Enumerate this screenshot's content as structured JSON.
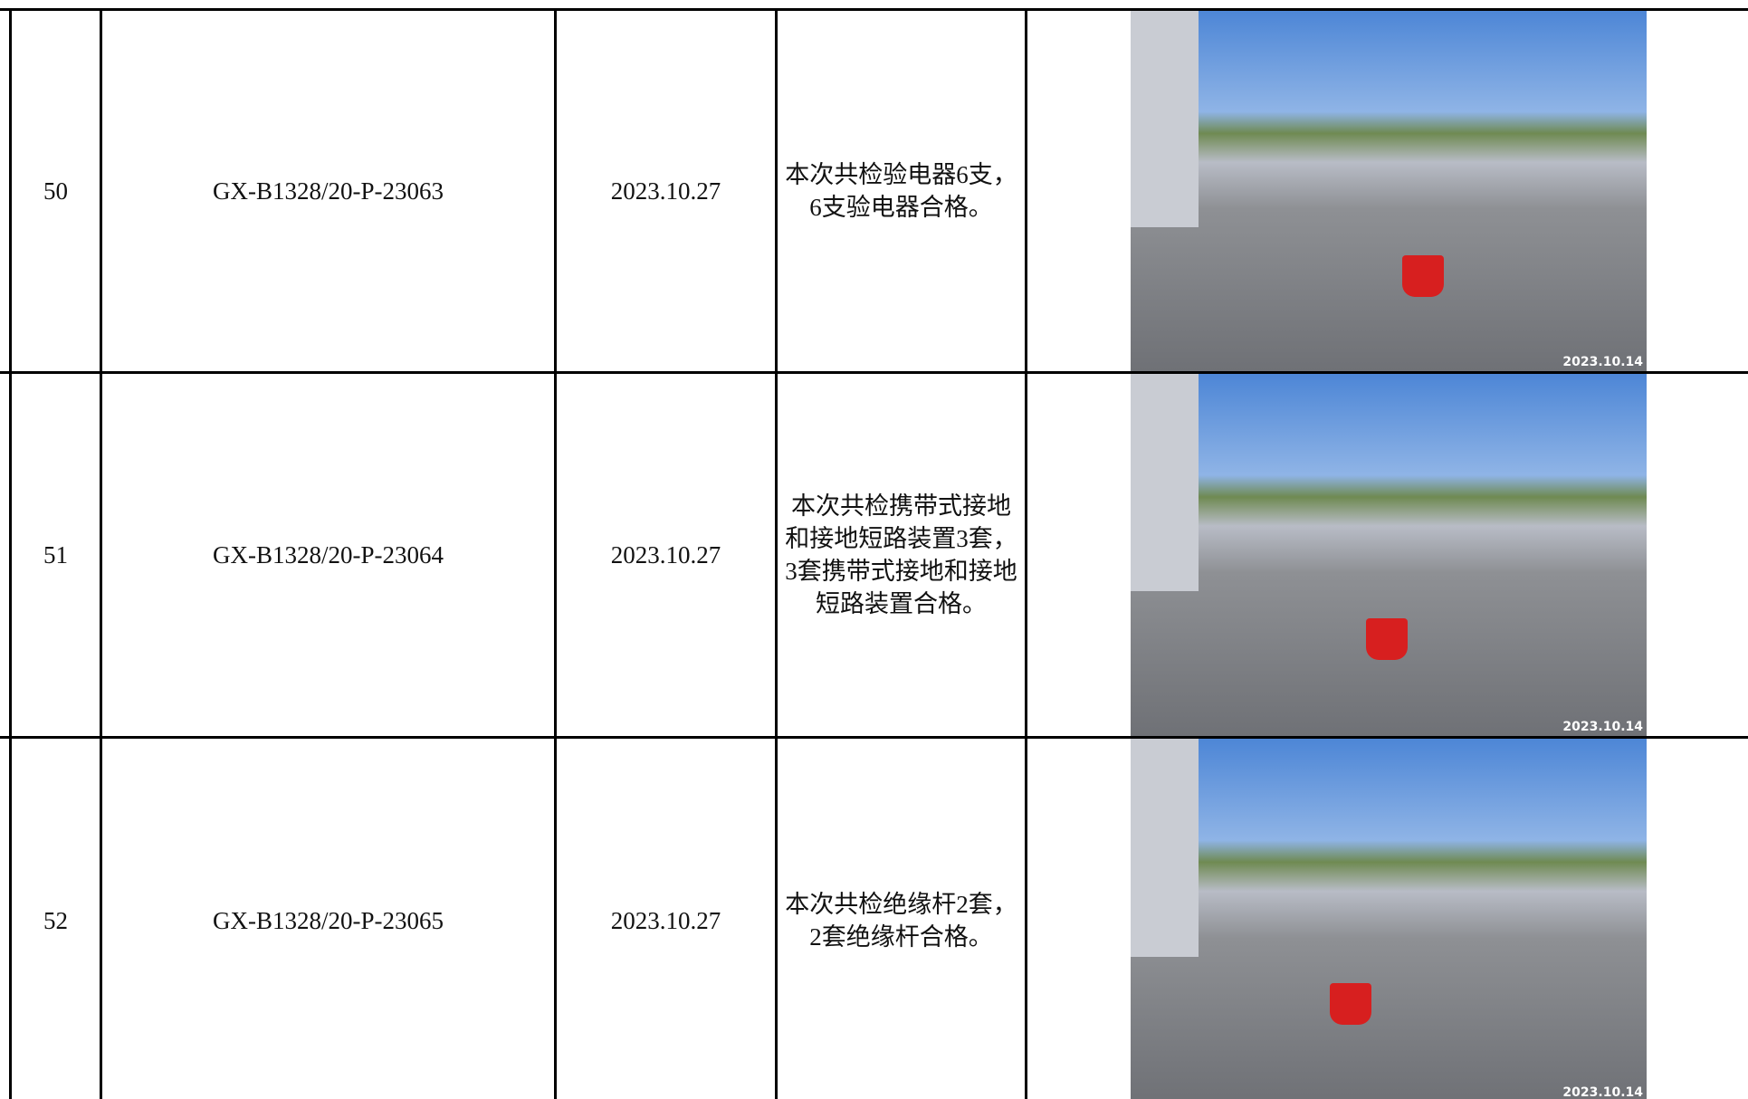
{
  "table": {
    "rows": [
      {
        "number": "50",
        "code": "GX-B1328/20-P-23063",
        "date": "2023.10.27",
        "description": "本次共检验电器6支，6支验电器合格。",
        "photo_stamp": "2023.10.14"
      },
      {
        "number": "51",
        "code": "GX-B1328/20-P-23064",
        "date": "2023.10.27",
        "description": "本次共检携带式接地和接地短路装置3套，3套携带式接地和接地短路装置合格。",
        "photo_stamp": "2023.10.14"
      },
      {
        "number": "52",
        "code": "GX-B1328/20-P-23065",
        "date": "2023.10.27",
        "description": "本次共检绝缘杆2套，2套绝缘杆合格。",
        "photo_stamp": "2023.10.14"
      }
    ]
  }
}
